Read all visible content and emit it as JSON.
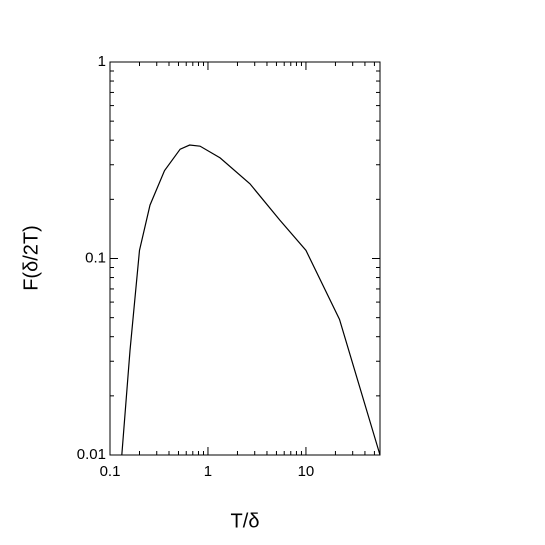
{
  "chart_data": {
    "type": "line",
    "x_label": "T/δ",
    "y_label": "F(δ/2T)",
    "log_x": true,
    "log_y": true,
    "color": "#000000",
    "x": [
      0.132,
      0.16,
      0.2,
      0.256,
      0.36,
      0.52,
      0.65,
      0.83,
      1.33,
      2.68,
      5.4,
      10,
      22,
      57
    ],
    "values": [
      0.01,
      0.034,
      0.11,
      0.187,
      0.28,
      0.36,
      0.378,
      0.373,
      0.325,
      0.24,
      0.157,
      0.11,
      0.049,
      0.01
    ],
    "xlim": [
      0.1,
      57
    ],
    "ylim": [
      0.01,
      1
    ],
    "xticks": [
      0.1,
      1,
      10
    ],
    "yticks": [
      0.01,
      0.1,
      1
    ]
  }
}
